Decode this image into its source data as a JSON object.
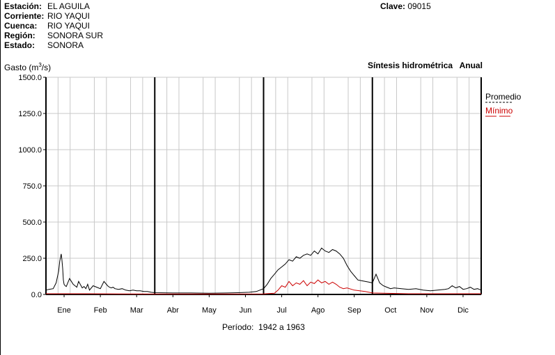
{
  "header": {
    "estacion_label": "Estación:",
    "estacion": "EL AGUILA",
    "corriente_label": "Corriente:",
    "corriente": "RIO YAQUI",
    "cuenca_label": "Cuenca:",
    "cuenca": "RIO YAQUI",
    "region_label": "Región:",
    "region": "SONORA SUR",
    "estado_label": "Estado:",
    "estado": "SONORA",
    "clave_label": "Clave:",
    "clave": "09015"
  },
  "subtitle": "Síntesis hidrométrica   Anual",
  "footer": "Período:  1942 a 1963",
  "colors": {
    "promedio": "#000000",
    "minimo": "#cc0000",
    "grid": "#c8c8c8"
  },
  "chart_data": {
    "type": "line",
    "ylabel": "Gasto (m³/s)",
    "ylabel_text": "Gasto (m",
    "ylabel_sup": "3",
    "ylabel_end": "/s)",
    "ylim": [
      0,
      1500
    ],
    "y_ticks": [
      "1500.0",
      "1250.0",
      "1000.0",
      "750.0",
      "500.0",
      "250.0",
      "0.0"
    ],
    "categories": [
      "Ene",
      "Feb",
      "Mar",
      "Abr",
      "May",
      "Jun",
      "Jul",
      "Ago",
      "Sep",
      "Oct",
      "Nov",
      "Dic"
    ],
    "x_range": [
      0,
      12
    ],
    "grid": true,
    "legend_position": "right",
    "series": [
      {
        "name": "Promedio",
        "color": "#000000",
        "x": [
          0,
          0.08,
          0.2,
          0.28,
          0.35,
          0.38,
          0.42,
          0.44,
          0.46,
          0.48,
          0.5,
          0.53,
          0.56,
          0.6,
          0.65,
          0.7,
          0.75,
          0.8,
          0.85,
          0.9,
          1.0,
          1.05,
          1.1,
          1.15,
          1.2,
          1.3,
          1.4,
          1.5,
          1.6,
          1.7,
          1.75,
          1.8,
          1.85,
          1.9,
          2.0,
          2.1,
          2.2,
          2.3,
          2.4,
          2.5,
          2.6,
          2.7,
          2.8,
          2.9,
          3.0,
          3.5,
          4.0,
          4.5,
          5.0,
          5.3,
          5.6,
          5.8,
          6.0,
          6.1,
          6.2,
          6.3,
          6.4,
          6.5,
          6.6,
          6.7,
          6.8,
          6.9,
          7.0,
          7.1,
          7.2,
          7.3,
          7.4,
          7.5,
          7.6,
          7.7,
          7.8,
          7.9,
          8.0,
          8.1,
          8.2,
          8.3,
          8.4,
          8.5,
          8.6,
          8.7,
          8.8,
          8.9,
          9.0,
          9.05,
          9.1,
          9.2,
          9.3,
          9.4,
          9.5,
          9.6,
          9.8,
          10.0,
          10.2,
          10.4,
          10.6,
          10.8,
          11.0,
          11.1,
          11.2,
          11.3,
          11.4,
          11.5,
          11.6,
          11.7,
          11.8,
          11.9,
          12.0
        ],
        "values": [
          30,
          35,
          40,
          80,
          160,
          230,
          280,
          240,
          180,
          100,
          70,
          60,
          55,
          80,
          110,
          90,
          70,
          60,
          50,
          90,
          45,
          55,
          40,
          70,
          30,
          60,
          50,
          40,
          90,
          60,
          50,
          45,
          50,
          40,
          35,
          40,
          30,
          25,
          30,
          25,
          25,
          20,
          20,
          15,
          12,
          10,
          10,
          8,
          10,
          12,
          15,
          20,
          40,
          70,
          110,
          140,
          170,
          190,
          210,
          240,
          230,
          260,
          250,
          270,
          280,
          270,
          300,
          280,
          320,
          300,
          290,
          310,
          300,
          280,
          250,
          200,
          160,
          130,
          100,
          95,
          90,
          85,
          80,
          110,
          140,
          80,
          60,
          50,
          40,
          45,
          40,
          35,
          40,
          30,
          25,
          30,
          35,
          40,
          60,
          45,
          55,
          35,
          40,
          50,
          35,
          40,
          30
        ]
      },
      {
        "name": "Mínimo",
        "color": "#cc0000",
        "x": [
          0,
          1,
          2,
          3,
          4,
          5,
          6.0,
          6.3,
          6.4,
          6.5,
          6.6,
          6.7,
          6.8,
          6.9,
          7.0,
          7.1,
          7.2,
          7.3,
          7.4,
          7.5,
          7.6,
          7.7,
          7.8,
          7.9,
          8.0,
          8.1,
          8.2,
          8.3,
          8.5,
          8.8,
          9.0,
          10,
          11,
          12
        ],
        "values": [
          5,
          5,
          4,
          3,
          3,
          3,
          4,
          8,
          30,
          60,
          50,
          90,
          60,
          80,
          70,
          95,
          60,
          85,
          75,
          100,
          80,
          90,
          70,
          85,
          70,
          50,
          40,
          45,
          30,
          20,
          10,
          5,
          5,
          5
        ]
      }
    ]
  }
}
